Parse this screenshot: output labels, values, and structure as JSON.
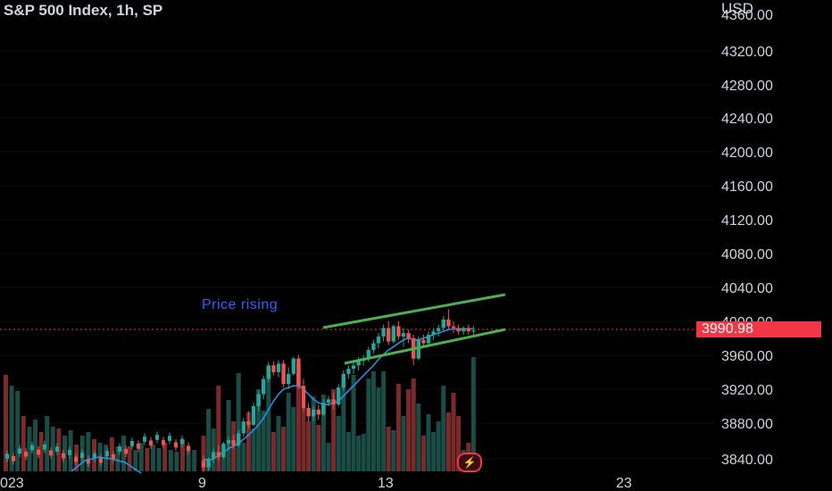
{
  "header": {
    "title": "S&P 500 Index, 1h, SP",
    "currency": "USD"
  },
  "annotation": "Price rising",
  "last_price": "3990.98",
  "chart_data": {
    "type": "candlestick",
    "y_ticks": [
      "4320.00",
      "4280.00",
      "4240.00",
      "4200.00",
      "4160.00",
      "4120.00",
      "4080.00",
      "4040.00",
      "4000.00",
      "3960.00",
      "3920.00",
      "3880.00",
      "3840.00"
    ],
    "x_ticks": [
      "023",
      "9",
      "13",
      "23"
    ],
    "ylim": [
      3830,
      4355
    ],
    "colors": {
      "up": "#26a69a",
      "down": "#ef5350",
      "ma": "#2196f3",
      "channel": "#4caf50",
      "price": "#f23645"
    },
    "candles": [
      {
        "o": 3838,
        "h": 3844,
        "l": 3825,
        "c": 3830
      },
      {
        "o": 3830,
        "h": 3842,
        "l": 3826,
        "c": 3840
      },
      {
        "o": 3840,
        "h": 3852,
        "l": 3835,
        "c": 3848
      },
      {
        "o": 3848,
        "h": 3856,
        "l": 3838,
        "c": 3842
      },
      {
        "o": 3842,
        "h": 3860,
        "l": 3840,
        "c": 3858
      },
      {
        "o": 3858,
        "h": 3866,
        "l": 3850,
        "c": 3862
      },
      {
        "o": 3862,
        "h": 3868,
        "l": 3852,
        "c": 3856
      },
      {
        "o": 3856,
        "h": 3874,
        "l": 3854,
        "c": 3870
      },
      {
        "o": 3870,
        "h": 3888,
        "l": 3866,
        "c": 3884
      },
      {
        "o": 3884,
        "h": 3896,
        "l": 3876,
        "c": 3880
      },
      {
        "o": 3880,
        "h": 3906,
        "l": 3878,
        "c": 3902
      },
      {
        "o": 3902,
        "h": 3920,
        "l": 3896,
        "c": 3916
      },
      {
        "o": 3916,
        "h": 3938,
        "l": 3910,
        "c": 3934
      },
      {
        "o": 3934,
        "h": 3954,
        "l": 3930,
        "c": 3950
      },
      {
        "o": 3950,
        "h": 3955,
        "l": 3938,
        "c": 3942
      },
      {
        "o": 3942,
        "h": 3956,
        "l": 3936,
        "c": 3952
      },
      {
        "o": 3952,
        "h": 3956,
        "l": 3924,
        "c": 3928
      },
      {
        "o": 3928,
        "h": 3948,
        "l": 3922,
        "c": 3940
      },
      {
        "o": 3940,
        "h": 3960,
        "l": 3938,
        "c": 3958
      },
      {
        "o": 3958,
        "h": 3962,
        "l": 3922,
        "c": 3926
      },
      {
        "o": 3926,
        "h": 3934,
        "l": 3896,
        "c": 3900
      },
      {
        "o": 3900,
        "h": 3906,
        "l": 3884,
        "c": 3890
      },
      {
        "o": 3890,
        "h": 3902,
        "l": 3884,
        "c": 3898
      },
      {
        "o": 3898,
        "h": 3904,
        "l": 3886,
        "c": 3892
      },
      {
        "o": 3892,
        "h": 3910,
        "l": 3890,
        "c": 3906
      },
      {
        "o": 3906,
        "h": 3914,
        "l": 3902,
        "c": 3910
      },
      {
        "o": 3910,
        "h": 3918,
        "l": 3898,
        "c": 3904
      },
      {
        "o": 3904,
        "h": 3928,
        "l": 3902,
        "c": 3924
      },
      {
        "o": 3924,
        "h": 3944,
        "l": 3920,
        "c": 3940
      },
      {
        "o": 3940,
        "h": 3950,
        "l": 3934,
        "c": 3946
      },
      {
        "o": 3946,
        "h": 3954,
        "l": 3940,
        "c": 3950
      },
      {
        "o": 3950,
        "h": 3960,
        "l": 3944,
        "c": 3956
      },
      {
        "o": 3956,
        "h": 3962,
        "l": 3950,
        "c": 3958
      },
      {
        "o": 3958,
        "h": 3972,
        "l": 3954,
        "c": 3968
      },
      {
        "o": 3968,
        "h": 3980,
        "l": 3964,
        "c": 3976
      },
      {
        "o": 3976,
        "h": 3988,
        "l": 3970,
        "c": 3984
      },
      {
        "o": 3984,
        "h": 3998,
        "l": 3978,
        "c": 3994
      },
      {
        "o": 3994,
        "h": 4002,
        "l": 3974,
        "c": 3978
      },
      {
        "o": 3978,
        "h": 3998,
        "l": 3976,
        "c": 3996
      },
      {
        "o": 3996,
        "h": 4002,
        "l": 3980,
        "c": 3984
      },
      {
        "o": 3984,
        "h": 3994,
        "l": 3972,
        "c": 3988
      },
      {
        "o": 3988,
        "h": 3992,
        "l": 3976,
        "c": 3982
      },
      {
        "o": 3982,
        "h": 3986,
        "l": 3950,
        "c": 3958
      },
      {
        "o": 3958,
        "h": 3984,
        "l": 3956,
        "c": 3980
      },
      {
        "o": 3980,
        "h": 3986,
        "l": 3972,
        "c": 3976
      },
      {
        "o": 3976,
        "h": 3990,
        "l": 3972,
        "c": 3986
      },
      {
        "o": 3986,
        "h": 3994,
        "l": 3980,
        "c": 3990
      },
      {
        "o": 3990,
        "h": 3998,
        "l": 3984,
        "c": 3994
      },
      {
        "o": 3994,
        "h": 4008,
        "l": 3990,
        "c": 4004
      },
      {
        "o": 4004,
        "h": 4016,
        "l": 3992,
        "c": 3996
      },
      {
        "o": 3996,
        "h": 4002,
        "l": 3988,
        "c": 3994
      },
      {
        "o": 3994,
        "h": 3998,
        "l": 3986,
        "c": 3990
      },
      {
        "o": 3990,
        "h": 3996,
        "l": 3986,
        "c": 3994
      },
      {
        "o": 3994,
        "h": 3998,
        "l": 3986,
        "c": 3990
      },
      {
        "o": 3990,
        "h": 3996,
        "l": 3986,
        "c": 3991
      }
    ],
    "volumes": [
      20,
      35,
      24,
      48,
      12,
      40,
      28,
      55,
      16,
      33,
      24,
      46,
      34,
      58,
      22,
      31,
      25,
      44,
      36,
      60,
      36,
      28,
      42,
      26,
      43,
      16,
      46,
      31,
      50,
      22,
      54,
      20,
      21,
      52,
      56,
      47,
      56,
      25,
      23,
      49,
      31,
      46,
      52,
      38,
      20,
      32,
      22,
      28,
      48,
      33,
      44,
      31,
      12,
      16,
      64
    ],
    "ma": [
      3840,
      3838,
      3840,
      3844,
      3848,
      3852,
      3855,
      3858,
      3863,
      3868,
      3874,
      3880,
      3888,
      3898,
      3908,
      3916,
      3922,
      3924,
      3926,
      3926,
      3922,
      3916,
      3910,
      3906,
      3904,
      3904,
      3906,
      3908,
      3914,
      3920,
      3926,
      3932,
      3938,
      3944,
      3950,
      3957,
      3963,
      3968,
      3972,
      3976,
      3980,
      3982,
      3980,
      3980,
      3982,
      3984,
      3986,
      3988,
      3990,
      3992,
      3993,
      3993,
      3993,
      3993,
      3993
    ],
    "channel_upper": [
      {
        "x": 362,
        "y": 367
      },
      {
        "x": 566,
        "y": 330
      }
    ],
    "channel_lower": [
      {
        "x": 386,
        "y": 407
      },
      {
        "x": 566,
        "y": 369
      }
    ]
  }
}
